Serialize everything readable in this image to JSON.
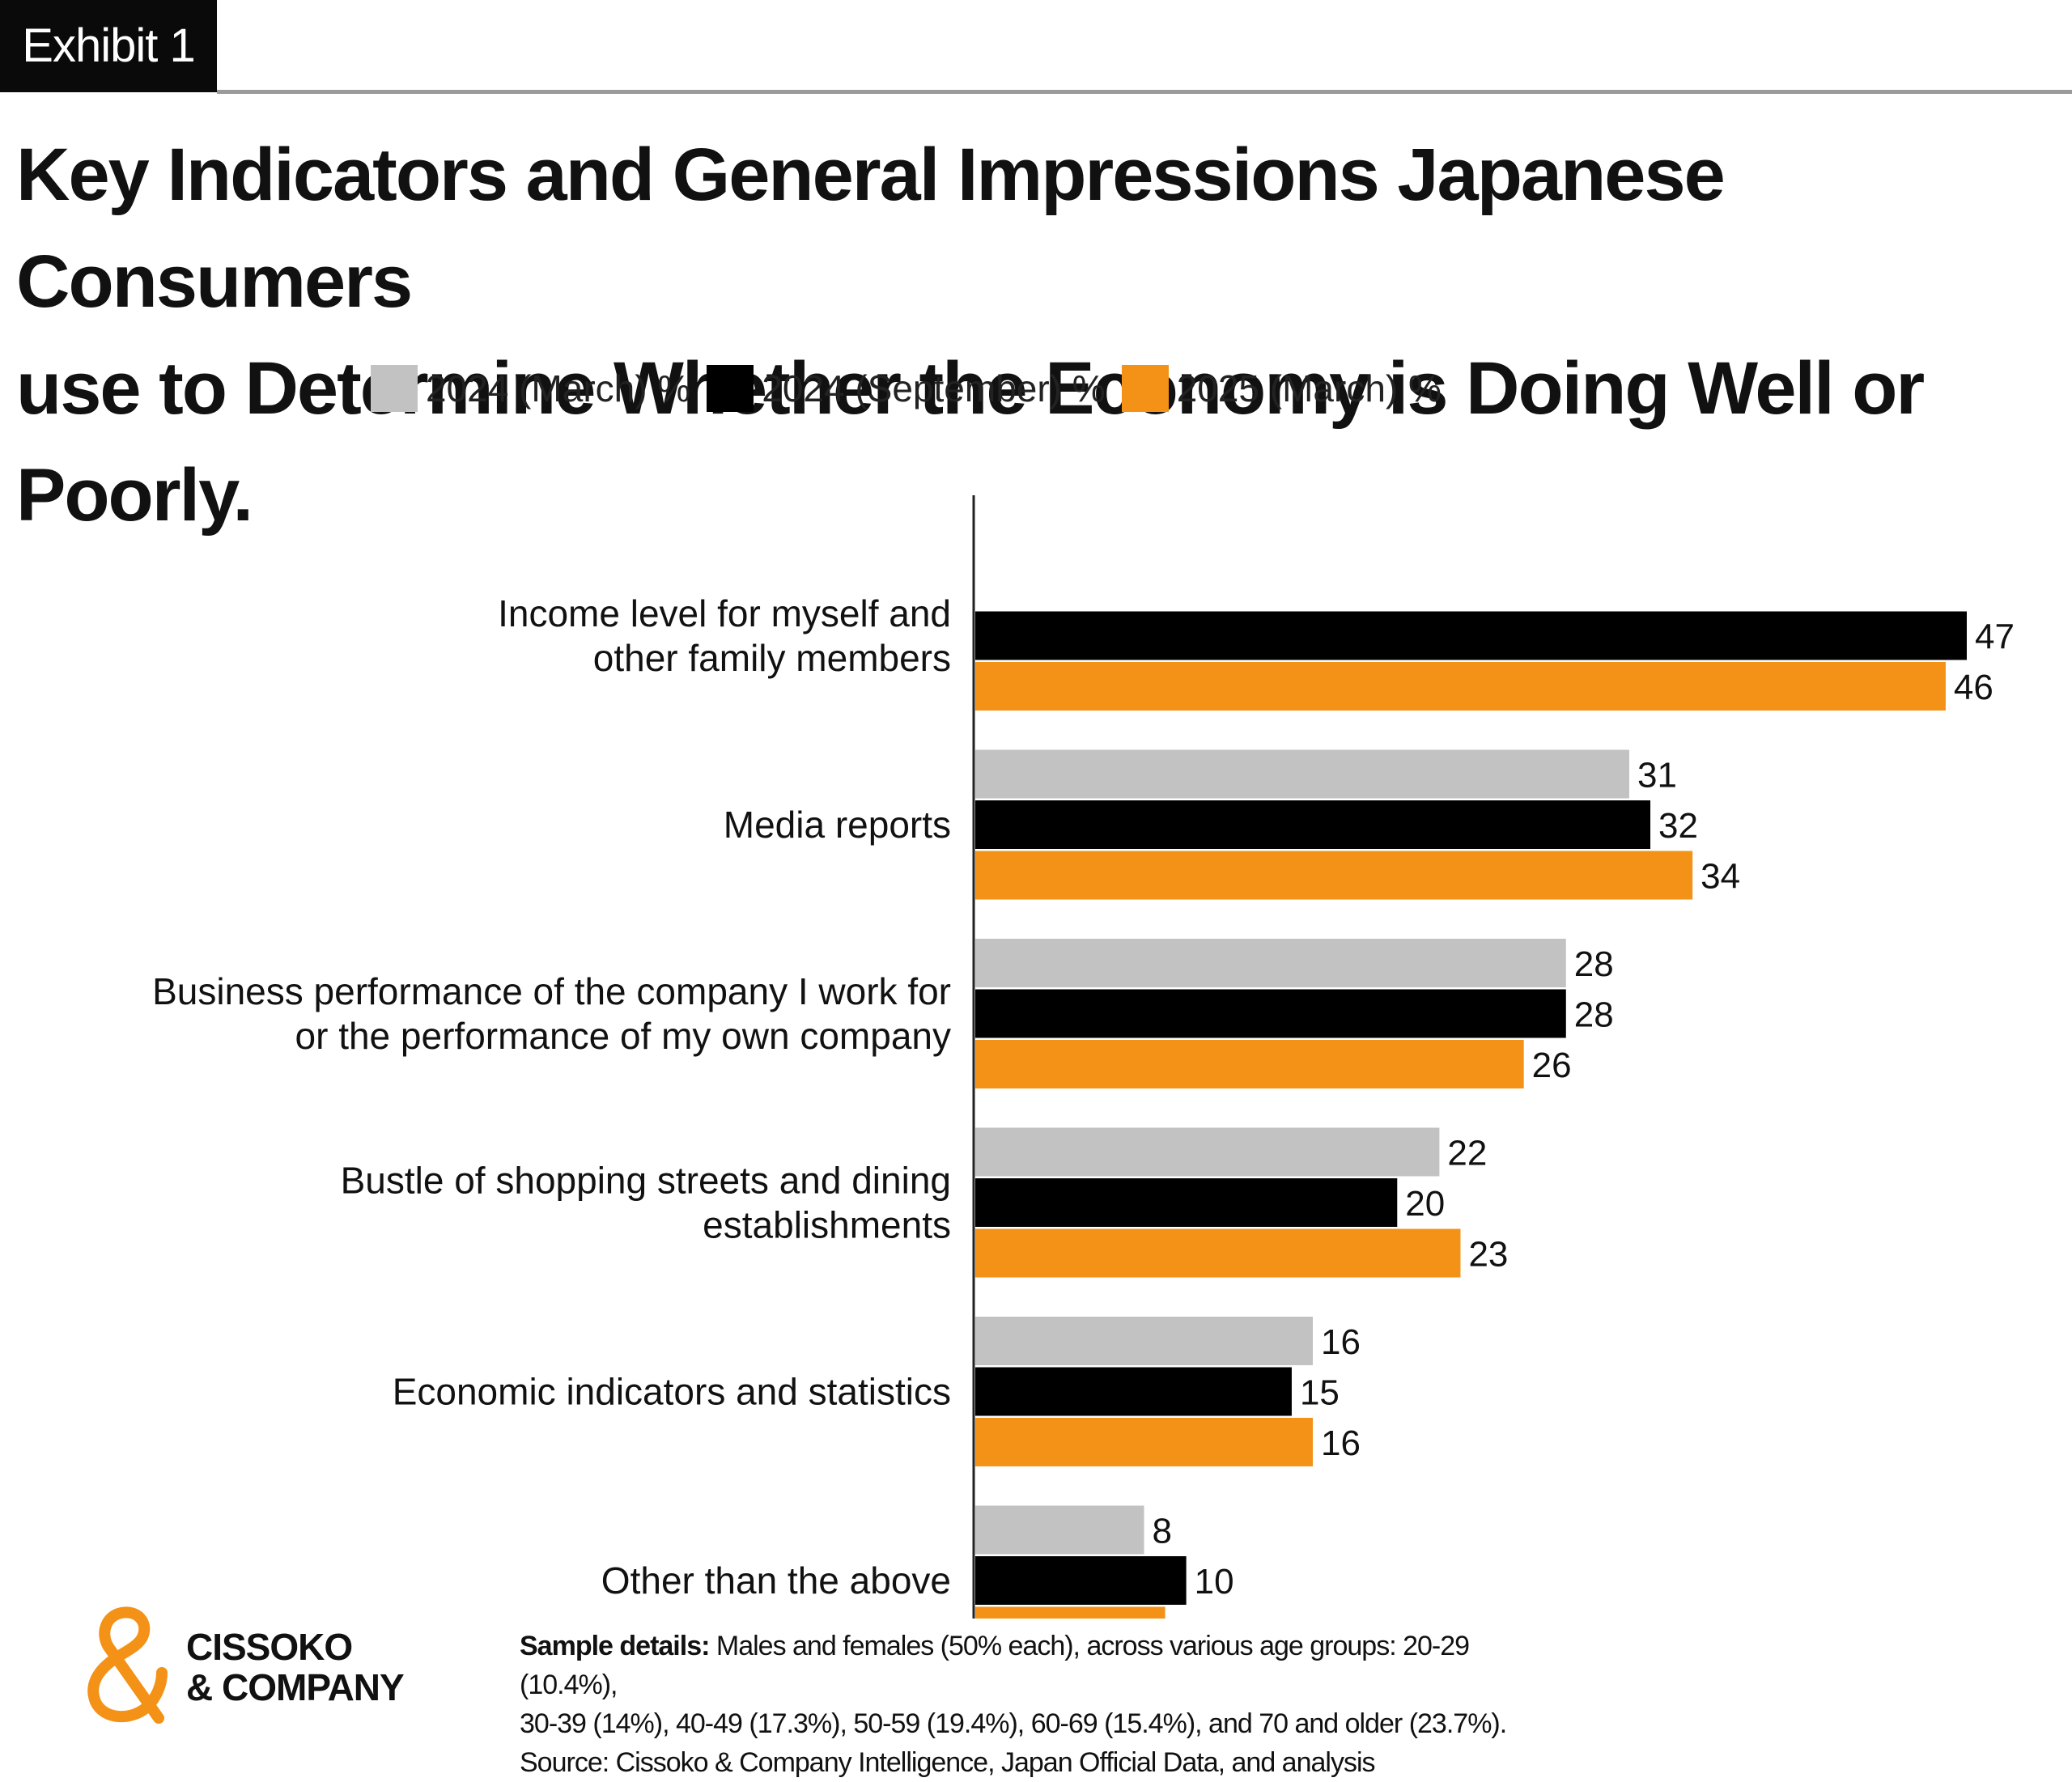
{
  "exhibit_label": "Exhibit 1",
  "title_line1": "Key Indicators and General Impressions Japanese Consumers",
  "title_line2": "use to Determine Whether the Economy is Doing Well or Poorly.",
  "colors": {
    "series_2024_march": "#c2c2c2",
    "series_2024_september": "#000000",
    "series_2025_march": "#f39217",
    "logo_orange": "#f39217"
  },
  "chart_data": {
    "type": "bar",
    "orientation": "horizontal",
    "categories": [
      [
        "Income level for myself and",
        "other family members"
      ],
      [
        "Media reports"
      ],
      [
        "Business performance of the company I work for",
        "or the performance of my own company"
      ],
      [
        "Bustle of shopping streets and dining",
        "establishments"
      ],
      [
        "Economic indicators and statistics"
      ],
      [
        "Other than the above"
      ]
    ],
    "series": [
      {
        "name": "2024 (March) %",
        "values": [
          null,
          31,
          28,
          22,
          16,
          8
        ]
      },
      {
        "name": "2024 (September) %",
        "values": [
          47,
          32,
          28,
          20,
          15,
          10
        ]
      },
      {
        "name": "2025 (March) %",
        "values": [
          46,
          34,
          26,
          23,
          16,
          9
        ]
      }
    ],
    "xlim": [
      0,
      47
    ],
    "grid": false,
    "legend_position": "top"
  },
  "logo": {
    "line1": "CISSOKO",
    "line2": "& COMPANY",
    "icon": "ampersand-logo-icon"
  },
  "footnote": {
    "label": "Sample details:",
    "line1": " Males and females (50% each), across various age groups: 20-29 (10.4%),",
    "line2": "30-39 (14%), 40-49 (17.3%), 50-59 (19.4%), 60-69 (15.4%), and 70 and older (23.7%).",
    "line3": "Source: Cissoko & Company Intelligence, Japan Official Data, and analysis"
  }
}
